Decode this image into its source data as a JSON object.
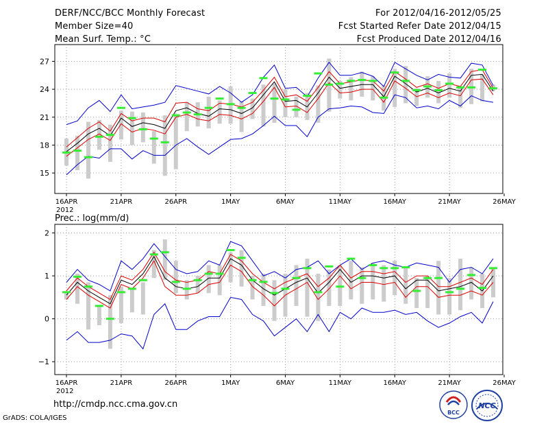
{
  "header": {
    "title": "DERF/NCC/BCC Monthly Forecast",
    "member_size": "Member Size=40",
    "variable1": "Mean Surf. Temp.: °C",
    "period": "For 2012/04/16-2012/05/25",
    "started": "Fcst Started Refer Date 2012/04/15",
    "produced": "Fcst Produced Date 2012/04/16"
  },
  "footer": {
    "url": "http://cmdp.ncc.cma.gov.cn",
    "grads": "GrADS: COLA/IGES",
    "logo_bcc": "BCC",
    "logo_ncc": "NCC"
  },
  "colors": {
    "envelope": "#0000cc",
    "spread": "#dd0000",
    "mean": "#000000",
    "box": "#cccccc",
    "marker": "#33ee33",
    "grid": "#999999"
  },
  "chart_data": [
    {
      "type": "line",
      "title": "Mean Surf. Temp.: °C",
      "x_tick_labels": [
        "16APR",
        "21APR",
        "26APR",
        "1MAY",
        "6MAY",
        "11MAY",
        "16MAY",
        "21MAY",
        "26MAY"
      ],
      "x_year_label": "2012",
      "ylim": [
        12.8,
        28.8
      ],
      "yticks": [
        15,
        18,
        21,
        24,
        27
      ],
      "days": [
        1,
        2,
        3,
        4,
        5,
        6,
        7,
        8,
        9,
        10,
        11,
        12,
        13,
        14,
        15,
        16,
        17,
        18,
        19,
        20,
        21,
        22,
        23,
        24,
        25,
        26,
        27,
        28,
        29,
        30,
        31,
        32,
        33,
        34,
        35,
        36,
        37,
        38,
        39,
        40
      ],
      "series": [
        {
          "name": "max",
          "values": [
            20.2,
            20.6,
            22.0,
            22.8,
            21.6,
            23.4,
            21.9,
            22.1,
            22.3,
            22.6,
            24.4,
            24.1,
            23.8,
            23.5,
            24.3,
            23.6,
            22.6,
            23.4,
            25.3,
            26.6,
            24.1,
            24.2,
            23.2,
            25.2,
            26.9,
            25.5,
            25.5,
            25.8,
            25.4,
            24.3,
            26.9,
            26.2,
            25.5,
            25.0,
            25.6,
            25.3,
            25.2,
            26.8,
            26.6,
            24.4
          ]
        },
        {
          "name": "upper",
          "values": [
            17.8,
            18.8,
            19.8,
            20.5,
            19.5,
            21.4,
            20.6,
            20.9,
            20.9,
            20.5,
            22.5,
            22.6,
            21.9,
            21.7,
            22.5,
            22.4,
            22.1,
            22.6,
            23.9,
            25.3,
            23.2,
            23.4,
            22.7,
            24.2,
            25.9,
            24.6,
            24.8,
            25.0,
            24.9,
            23.8,
            25.9,
            25.1,
            24.2,
            24.6,
            24.1,
            24.6,
            24.3,
            25.9,
            26.1,
            24.1
          ]
        },
        {
          "name": "mean",
          "values": [
            17.3,
            18.2,
            19.2,
            19.8,
            19.0,
            20.9,
            20.0,
            20.4,
            20.2,
            19.8,
            21.7,
            22.0,
            21.4,
            21.1,
            21.9,
            21.8,
            21.4,
            22.0,
            23.4,
            24.8,
            22.7,
            22.8,
            22.1,
            23.6,
            25.3,
            24.1,
            24.3,
            24.5,
            24.5,
            23.2,
            25.4,
            24.6,
            23.7,
            24.1,
            23.6,
            24.1,
            23.8,
            25.5,
            25.6,
            23.8
          ]
        },
        {
          "name": "lower",
          "values": [
            16.8,
            17.7,
            18.6,
            19.2,
            18.5,
            20.3,
            19.4,
            19.8,
            19.6,
            19.2,
            21.0,
            21.3,
            20.8,
            20.6,
            21.3,
            21.2,
            20.8,
            21.4,
            22.7,
            24.2,
            22.1,
            22.2,
            21.5,
            23.0,
            24.7,
            23.6,
            23.7,
            24.0,
            24.0,
            22.6,
            24.9,
            24.1,
            23.2,
            23.6,
            23.1,
            23.6,
            23.3,
            25.0,
            25.1,
            23.4
          ]
        },
        {
          "name": "min",
          "values": [
            14.8,
            15.9,
            16.8,
            16.6,
            17.6,
            17.6,
            16.5,
            17.4,
            16.9,
            16.9,
            18.0,
            18.7,
            17.8,
            17.0,
            17.8,
            18.6,
            18.7,
            19.2,
            20.1,
            21.1,
            20.1,
            20.1,
            18.9,
            21.0,
            21.9,
            22.0,
            22.2,
            22.1,
            21.5,
            21.4,
            23.4,
            23.1,
            22.0,
            22.2,
            21.9,
            22.8,
            22.2,
            23.3,
            22.8,
            22.6
          ]
        },
        {
          "name": "box_low",
          "values": [
            15.8,
            15.3,
            14.4,
            17.5,
            16.2,
            18.6,
            18.0,
            18.3,
            16.0,
            14.7,
            15.4,
            19.5,
            20.0,
            19.8,
            20.3,
            20.3,
            19.4,
            20.8,
            20.0,
            20.4,
            21.0,
            21.0,
            20.7,
            20.4,
            21.6,
            23.0,
            22.8,
            23.2,
            22.8,
            21.7,
            22.1,
            22.5,
            22.2,
            23.1,
            22.5,
            23.1,
            22.0,
            22.4,
            22.7,
            23.8
          ]
        },
        {
          "name": "box_high",
          "values": [
            18.7,
            19.0,
            20.5,
            20.7,
            20.2,
            21.7,
            21.6,
            21.5,
            19.5,
            21.2,
            21.2,
            22.6,
            22.6,
            23.2,
            22.8,
            24.3,
            22.7,
            23.0,
            24.5,
            24.6,
            24.0,
            23.2,
            23.6,
            24.4,
            27.3,
            24.9,
            25.3,
            25.9,
            25.4,
            24.4,
            26.2,
            26.5,
            24.1,
            25.4,
            24.9,
            25.7,
            24.2,
            26.2,
            25.6,
            24.5
          ]
        },
        {
          "name": "observed_marker",
          "values": [
            17.2,
            17.4,
            16.7,
            18.9,
            19.1,
            22.0,
            20.9,
            19.7,
            18.7,
            18.3,
            21.2,
            21.5,
            21.3,
            22.0,
            23.0,
            22.4,
            22.0,
            23.6,
            25.2,
            23.0,
            22.9,
            21.8,
            23.3,
            25.7,
            24.5,
            24.6,
            24.9,
            25.0,
            24.9,
            23.1,
            25.8,
            24.9,
            23.9,
            24.3,
            23.9,
            24.6,
            24.2,
            24.2,
            26.1,
            24.1
          ]
        }
      ]
    },
    {
      "type": "line",
      "title": "Prec.: log(mm/d)",
      "x_tick_labels": [
        "16APR",
        "21APR",
        "26APR",
        "1MAY",
        "6MAY",
        "11MAY",
        "16MAY",
        "21MAY",
        "26MAY"
      ],
      "x_year_label": "2012",
      "ylim": [
        -1.3,
        2.2
      ],
      "yticks": [
        -1,
        0,
        1,
        2
      ],
      "days": [
        1,
        2,
        3,
        4,
        5,
        6,
        7,
        8,
        9,
        10,
        11,
        12,
        13,
        14,
        15,
        16,
        17,
        18,
        19,
        20,
        21,
        22,
        23,
        24,
        25,
        26,
        27,
        28,
        29,
        30,
        31,
        32,
        33,
        34,
        35,
        36,
        37,
        38,
        39,
        40
      ],
      "series": [
        {
          "name": "max",
          "values": [
            0.85,
            1.15,
            0.9,
            0.8,
            0.65,
            1.35,
            1.15,
            1.4,
            1.75,
            1.45,
            1.15,
            1.05,
            1.1,
            1.35,
            1.25,
            1.8,
            1.7,
            1.35,
            1.0,
            1.1,
            0.95,
            1.15,
            1.2,
            1.35,
            1.05,
            1.25,
            1.4,
            1.15,
            1.3,
            1.35,
            1.25,
            1.2,
            1.3,
            1.25,
            1.2,
            0.85,
            1.15,
            1.2,
            1.05,
            1.4
          ]
        },
        {
          "name": "upper",
          "values": [
            0.65,
            0.95,
            0.75,
            0.6,
            0.45,
            1.0,
            0.9,
            1.15,
            1.55,
            1.1,
            0.9,
            0.85,
            0.9,
            1.1,
            1.05,
            1.5,
            1.35,
            1.05,
            0.85,
            0.7,
            0.85,
            0.95,
            1.05,
            0.75,
            0.95,
            1.25,
            0.95,
            1.1,
            1.1,
            1.05,
            1.1,
            0.85,
            1.0,
            1.0,
            0.75,
            0.75,
            0.85,
            0.95,
            0.8,
            1.15
          ]
        },
        {
          "name": "mean",
          "values": [
            0.55,
            0.85,
            0.65,
            0.5,
            0.35,
            0.9,
            0.8,
            1.05,
            1.45,
            0.95,
            0.75,
            0.7,
            0.75,
            0.95,
            0.95,
            1.4,
            1.25,
            0.9,
            0.7,
            0.55,
            0.7,
            0.85,
            0.95,
            0.6,
            0.85,
            1.15,
            0.85,
            1.0,
            1.0,
            0.95,
            1.0,
            0.7,
            0.9,
            0.9,
            0.65,
            0.7,
            0.75,
            0.85,
            0.65,
            1.0
          ]
        },
        {
          "name": "lower",
          "values": [
            0.45,
            0.75,
            0.55,
            0.4,
            0.25,
            0.8,
            0.7,
            0.95,
            1.35,
            0.75,
            0.55,
            0.55,
            0.6,
            0.8,
            0.85,
            1.25,
            1.1,
            0.75,
            0.55,
            0.3,
            0.55,
            0.7,
            0.85,
            0.45,
            0.7,
            1.0,
            0.7,
            0.85,
            0.85,
            0.8,
            0.85,
            0.5,
            0.75,
            0.75,
            0.5,
            0.55,
            0.55,
            0.65,
            0.55,
            0.85
          ]
        },
        {
          "name": "min",
          "values": [
            -0.5,
            -0.3,
            -0.55,
            -0.55,
            -0.5,
            -0.35,
            -0.4,
            -0.7,
            0.1,
            0.35,
            -0.25,
            -0.25,
            -0.05,
            0.05,
            0.05,
            0.5,
            0.45,
            0.1,
            -0.05,
            -0.4,
            -0.2,
            0.0,
            -0.3,
            0.1,
            -0.3,
            0.15,
            0.0,
            0.25,
            0.15,
            0.15,
            0.2,
            0.1,
            0.15,
            -0.05,
            -0.2,
            -0.1,
            0.05,
            0.15,
            -0.1,
            0.4
          ]
        },
        {
          "name": "box_low",
          "values": [
            0.45,
            0.35,
            -0.25,
            -0.15,
            -0.7,
            -0.1,
            0.15,
            0.1,
            0.95,
            0.9,
            0.6,
            0.45,
            0.6,
            0.6,
            0.55,
            0.85,
            0.75,
            0.45,
            0.3,
            -0.05,
            0.05,
            0.3,
            0.05,
            -0.05,
            0.3,
            0.3,
            0.45,
            0.35,
            0.45,
            0.4,
            0.55,
            0.35,
            0.25,
            0.25,
            0.1,
            0.1,
            0.2,
            0.45,
            0.25,
            0.5
          ]
        },
        {
          "name": "box_high",
          "values": [
            0.6,
            1.05,
            0.85,
            0.3,
            0.55,
            0.75,
            0.7,
            0.85,
            1.6,
            1.85,
            1.35,
            0.9,
            1.0,
            1.25,
            1.25,
            1.55,
            1.6,
            1.0,
            1.05,
            0.9,
            1.05,
            1.25,
            1.4,
            1.05,
            1.15,
            1.25,
            1.35,
            1.2,
            1.3,
            1.25,
            1.35,
            1.2,
            0.95,
            1.0,
            1.35,
            0.95,
            1.4,
            1.2,
            1.05,
            1.2
          ]
        },
        {
          "name": "observed_marker",
          "values": [
            0.62,
            0.98,
            0.75,
            0.3,
            0.0,
            0.62,
            0.7,
            0.9,
            1.5,
            1.55,
            0.86,
            0.7,
            0.9,
            1.05,
            1.05,
            1.6,
            1.42,
            0.9,
            0.86,
            0.6,
            0.7,
            0.95,
            1.18,
            0.62,
            1.22,
            0.75,
            1.4,
            0.95,
            1.25,
            1.18,
            1.18,
            1.2,
            0.65,
            0.95,
            0.95,
            0.62,
            0.7,
            1.02,
            0.72,
            1.18
          ]
        }
      ]
    }
  ]
}
